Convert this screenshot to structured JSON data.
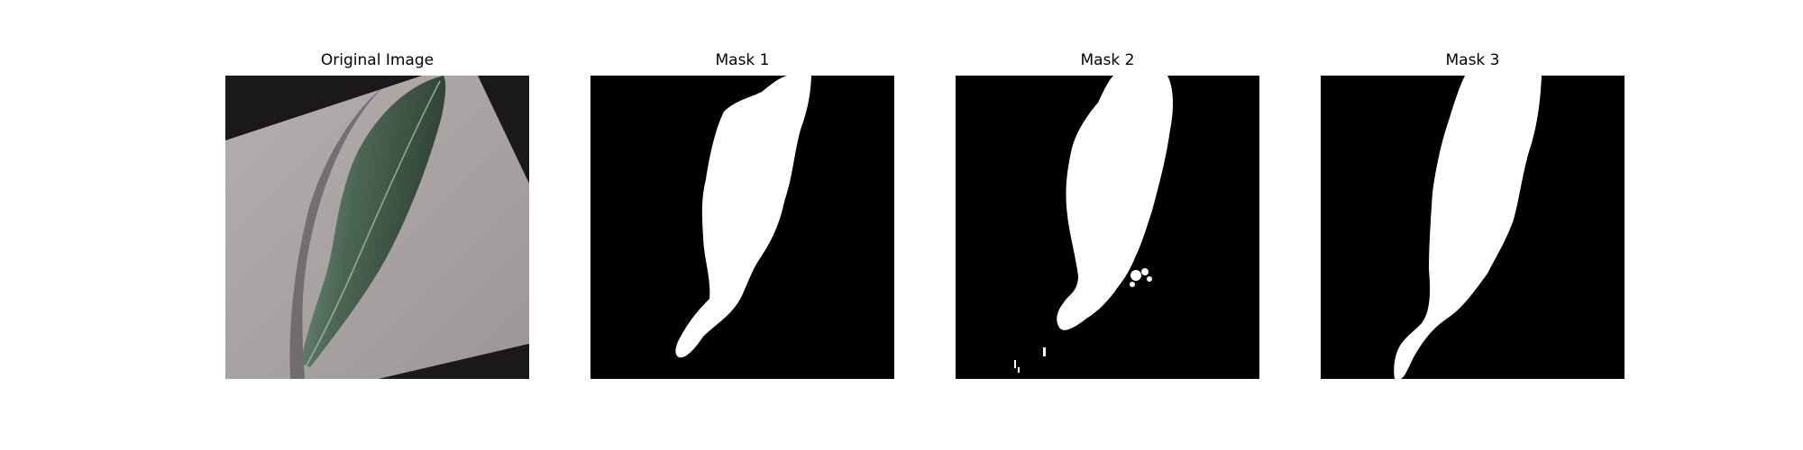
{
  "figure": {
    "panels": [
      {
        "title": "Original Image",
        "kind": "photo"
      },
      {
        "title": "Mask 1",
        "kind": "mask"
      },
      {
        "title": "Mask 2",
        "kind": "mask"
      },
      {
        "title": "Mask 3",
        "kind": "mask"
      }
    ],
    "colors": {
      "background": "#ffffff",
      "mask_background": "#000000",
      "mask_foreground": "#ffffff",
      "photo_dark_bg": "#1a1819",
      "photo_paper": "#a9a3a3",
      "leaf_dark": "#2d4033",
      "leaf_mid": "#4c6655",
      "leaf_light": "#8ea596"
    }
  }
}
